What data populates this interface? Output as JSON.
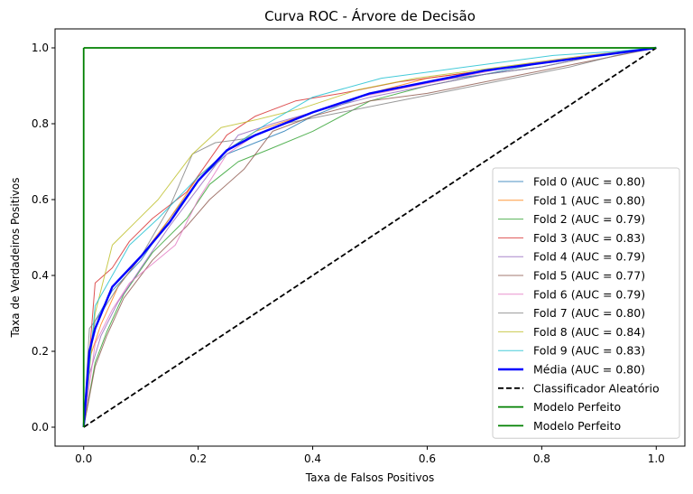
{
  "chart_data": {
    "type": "line",
    "title": "Curva ROC - Árvore de Decisão",
    "xlabel": "Taxa de Falsos Positivos",
    "ylabel": "Taxa de Verdadeiros Positivos",
    "xlim": [
      -0.05,
      1.05
    ],
    "ylim": [
      -0.05,
      1.05
    ],
    "xticks": [
      0.0,
      0.2,
      0.4,
      0.6,
      0.8,
      1.0
    ],
    "yticks": [
      0.0,
      0.2,
      0.4,
      0.6,
      0.8,
      1.0
    ],
    "xtick_labels": [
      "0.0",
      "0.2",
      "0.4",
      "0.6",
      "0.8",
      "1.0"
    ],
    "ytick_labels": [
      "0.0",
      "0.2",
      "0.4",
      "0.6",
      "0.8",
      "1.0"
    ],
    "grid": false,
    "legend_position": "lower-right",
    "series": [
      {
        "name": "Fold 0 (AUC = 0.80)",
        "color": "#1f77b4",
        "style": "fold",
        "x": [
          0,
          0.01,
          0.02,
          0.05,
          0.1,
          0.15,
          0.2,
          0.25,
          0.3,
          0.35,
          0.4,
          0.5,
          0.6,
          0.7,
          0.8,
          0.9,
          1.0
        ],
        "y": [
          0,
          0.2,
          0.28,
          0.36,
          0.44,
          0.55,
          0.65,
          0.72,
          0.75,
          0.78,
          0.82,
          0.88,
          0.91,
          0.93,
          0.96,
          0.98,
          1.0
        ]
      },
      {
        "name": "Fold 1 (AUC = 0.80)",
        "color": "#ff7f0e",
        "style": "fold",
        "x": [
          0,
          0.01,
          0.03,
          0.06,
          0.1,
          0.15,
          0.2,
          0.26,
          0.3,
          0.4,
          0.5,
          0.6,
          0.7,
          0.8,
          0.9,
          1.0
        ],
        "y": [
          0,
          0.18,
          0.27,
          0.37,
          0.45,
          0.55,
          0.66,
          0.74,
          0.78,
          0.83,
          0.88,
          0.92,
          0.94,
          0.96,
          0.98,
          1.0
        ]
      },
      {
        "name": "Fold 2 (AUC = 0.79)",
        "color": "#2ca02c",
        "style": "fold",
        "x": [
          0,
          0.02,
          0.04,
          0.07,
          0.12,
          0.18,
          0.22,
          0.27,
          0.32,
          0.4,
          0.5,
          0.6,
          0.7,
          0.8,
          0.9,
          1.0
        ],
        "y": [
          0,
          0.17,
          0.25,
          0.35,
          0.46,
          0.55,
          0.64,
          0.7,
          0.73,
          0.78,
          0.86,
          0.9,
          0.93,
          0.95,
          0.98,
          1.0
        ]
      },
      {
        "name": "Fold 3 (AUC = 0.83)",
        "color": "#d62728",
        "style": "fold",
        "x": [
          0,
          0.02,
          0.05,
          0.08,
          0.12,
          0.18,
          0.25,
          0.3,
          0.37,
          0.45,
          0.55,
          0.65,
          0.75,
          0.85,
          0.95,
          1.0
        ],
        "y": [
          0,
          0.38,
          0.42,
          0.49,
          0.55,
          0.62,
          0.77,
          0.82,
          0.86,
          0.88,
          0.91,
          0.93,
          0.95,
          0.97,
          0.99,
          1.0
        ]
      },
      {
        "name": "Fold 4 (AUC = 0.79)",
        "color": "#9467bd",
        "style": "fold",
        "x": [
          0,
          0.01,
          0.03,
          0.06,
          0.1,
          0.15,
          0.2,
          0.27,
          0.33,
          0.4,
          0.5,
          0.6,
          0.7,
          0.8,
          0.9,
          1.0
        ],
        "y": [
          0,
          0.14,
          0.24,
          0.33,
          0.42,
          0.53,
          0.63,
          0.77,
          0.8,
          0.83,
          0.87,
          0.9,
          0.93,
          0.95,
          0.98,
          1.0
        ]
      },
      {
        "name": "Fold 5 (AUC = 0.77)",
        "color": "#8c564b",
        "style": "fold",
        "x": [
          0,
          0.02,
          0.04,
          0.07,
          0.12,
          0.18,
          0.22,
          0.28,
          0.33,
          0.4,
          0.5,
          0.6,
          0.7,
          0.8,
          0.9,
          1.0
        ],
        "y": [
          0,
          0.16,
          0.24,
          0.34,
          0.44,
          0.53,
          0.6,
          0.68,
          0.78,
          0.82,
          0.86,
          0.88,
          0.91,
          0.94,
          0.97,
          1.0
        ]
      },
      {
        "name": "Fold 6 (AUC = 0.79)",
        "color": "#e377c2",
        "style": "fold",
        "x": [
          0,
          0.02,
          0.05,
          0.08,
          0.12,
          0.16,
          0.2,
          0.25,
          0.3,
          0.38,
          0.48,
          0.58,
          0.68,
          0.78,
          0.88,
          1.0
        ],
        "y": [
          0,
          0.22,
          0.31,
          0.38,
          0.43,
          0.48,
          0.6,
          0.72,
          0.77,
          0.82,
          0.87,
          0.9,
          0.93,
          0.96,
          0.98,
          1.0
        ]
      },
      {
        "name": "Fold 7 (AUC = 0.80)",
        "color": "#7f7f7f",
        "style": "fold",
        "x": [
          0,
          0.01,
          0.03,
          0.06,
          0.1,
          0.15,
          0.19,
          0.23,
          0.28,
          0.35,
          0.45,
          0.55,
          0.65,
          0.75,
          0.85,
          0.93,
          1.0
        ],
        "y": [
          0,
          0.26,
          0.3,
          0.37,
          0.45,
          0.58,
          0.72,
          0.75,
          0.76,
          0.8,
          0.83,
          0.86,
          0.89,
          0.92,
          0.95,
          0.98,
          1.0
        ]
      },
      {
        "name": "Fold 8 (AUC = 0.84)",
        "color": "#bcbd22",
        "style": "fold",
        "x": [
          0,
          0.02,
          0.05,
          0.09,
          0.13,
          0.19,
          0.24,
          0.3,
          0.38,
          0.48,
          0.58,
          0.68,
          0.78,
          0.88,
          1.0
        ],
        "y": [
          0,
          0.3,
          0.48,
          0.54,
          0.6,
          0.72,
          0.79,
          0.81,
          0.84,
          0.89,
          0.92,
          0.94,
          0.96,
          0.98,
          1.0
        ]
      },
      {
        "name": "Fold 9 (AUC = 0.83)",
        "color": "#17becf",
        "style": "fold",
        "x": [
          0,
          0.02,
          0.05,
          0.08,
          0.13,
          0.2,
          0.26,
          0.32,
          0.4,
          0.52,
          0.62,
          0.72,
          0.82,
          0.92,
          1.0
        ],
        "y": [
          0,
          0.32,
          0.4,
          0.48,
          0.55,
          0.66,
          0.74,
          0.8,
          0.87,
          0.92,
          0.94,
          0.96,
          0.98,
          0.99,
          1.0
        ]
      },
      {
        "name": "Média (AUC = 0.80)",
        "color": "#0000ff",
        "style": "mean",
        "x": [
          0,
          0.01,
          0.02,
          0.05,
          0.1,
          0.15,
          0.2,
          0.25,
          0.3,
          0.35,
          0.4,
          0.5,
          0.6,
          0.7,
          0.8,
          0.9,
          1.0
        ],
        "y": [
          0,
          0.2,
          0.26,
          0.37,
          0.45,
          0.54,
          0.65,
          0.73,
          0.77,
          0.8,
          0.83,
          0.88,
          0.91,
          0.94,
          0.96,
          0.98,
          1.0
        ]
      },
      {
        "name": "Classificador Aleatório",
        "color": "#000000",
        "style": "dashed",
        "x": [
          0,
          1
        ],
        "y": [
          0,
          1
        ]
      },
      {
        "name": "Modelo Perfeito",
        "color": "#008000",
        "style": "perfect",
        "x": [
          0,
          0
        ],
        "y": [
          0,
          1
        ]
      },
      {
        "name": "Modelo Perfeito",
        "color": "#008000",
        "style": "perfect",
        "x": [
          0,
          1
        ],
        "y": [
          1,
          1
        ]
      }
    ]
  }
}
